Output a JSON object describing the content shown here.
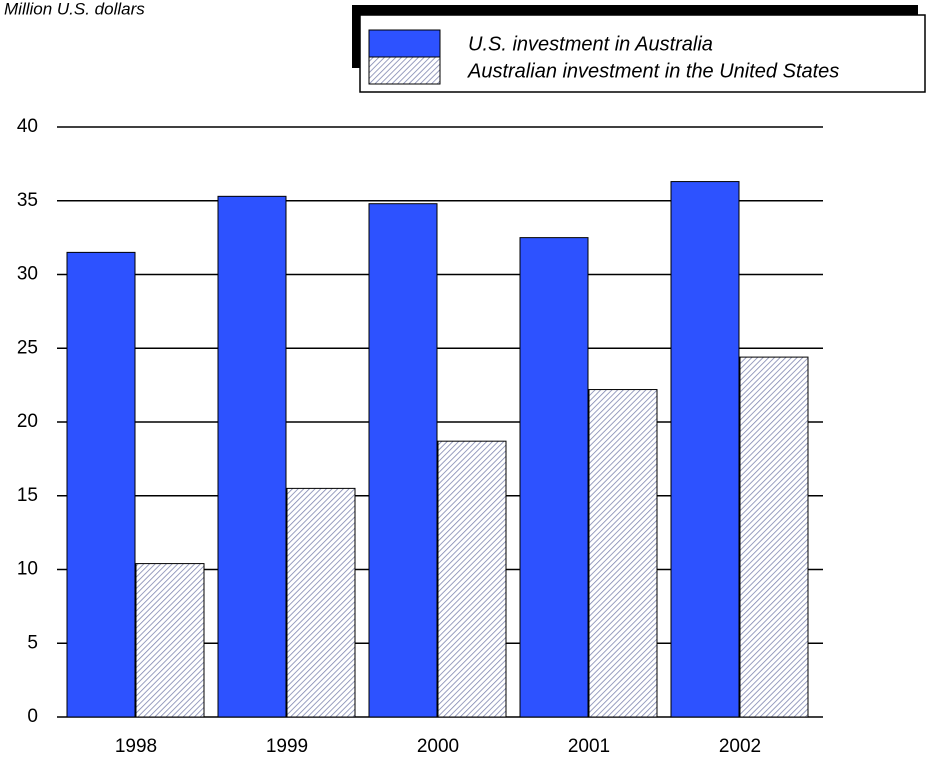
{
  "chart_data": {
    "type": "bar",
    "subtitle": "Million U.S. dollars",
    "categories": [
      "1998",
      "1999",
      "2000",
      "2001",
      "2002"
    ],
    "series": [
      {
        "name": "U.S. investment in Australia",
        "color": "#2d52ff",
        "values": [
          31.5,
          35.3,
          34.8,
          32.5,
          36.3
        ]
      },
      {
        "name": "Australian investment in the United States",
        "color": "#b4b8d4",
        "pattern": "hatch",
        "values": [
          10.4,
          15.5,
          18.7,
          22.2,
          24.4
        ]
      }
    ],
    "ylim": [
      0,
      40
    ],
    "yticks": [
      0,
      5,
      10,
      15,
      20,
      25,
      30,
      35,
      40
    ],
    "grid": true,
    "legend": "top right"
  }
}
